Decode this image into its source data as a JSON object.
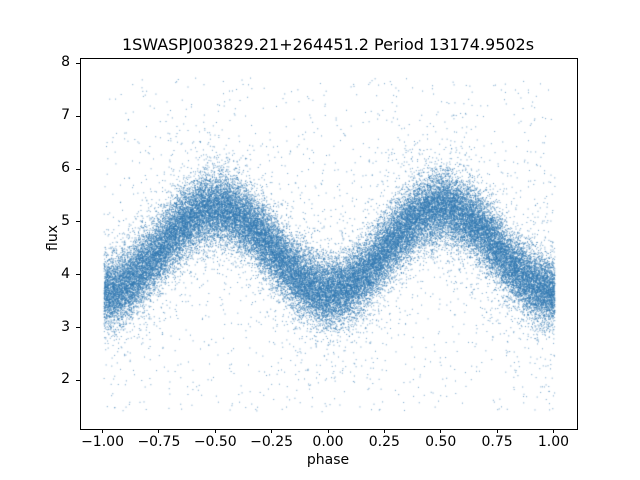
{
  "figure": {
    "background": "#ffffff",
    "spine_color": "#000000",
    "text_color": "#000000"
  },
  "chart_data": {
    "type": "scatter",
    "title": "1SWASPJ003829.21+264451.2 Period 13174.9502s",
    "xlabel": "phase",
    "ylabel": "flux",
    "xlim": [
      -1.1,
      1.1
    ],
    "ylim": [
      1.1,
      8.1
    ],
    "grid": false,
    "legend": "none",
    "x_ticks": [
      -1.0,
      -0.75,
      -0.5,
      -0.25,
      0.0,
      0.25,
      0.5,
      0.75,
      1.0
    ],
    "x_tick_labels": [
      "−1.00",
      "−0.75",
      "−0.50",
      "−0.25",
      "0.00",
      "0.25",
      "0.50",
      "0.75",
      "1.00"
    ],
    "y_ticks": [
      2,
      3,
      4,
      5,
      6,
      7,
      8
    ],
    "y_tick_labels": [
      "2",
      "3",
      "4",
      "5",
      "6",
      "7",
      "8"
    ],
    "marker_color": "#3177b1",
    "marker_rgba": "rgba(49,119,177,0.70)",
    "marker_size_px": 1,
    "curve_ridge": {
      "phases": [
        -1.0,
        -0.75,
        -0.5,
        -0.25,
        0.0,
        0.25,
        0.5,
        0.75,
        1.0
      ],
      "flux": [
        3.7,
        4.5,
        5.3,
        4.5,
        3.7,
        4.5,
        5.3,
        4.5,
        3.7
      ]
    },
    "model": {
      "kind": "folded_lightcurve_double_wave",
      "phase_range": [
        -1.0,
        1.0
      ],
      "mean_flux": 4.5,
      "amplitude": 0.8,
      "maxima_phases": [
        -0.5,
        0.5
      ],
      "minima_phases": [
        -1.0,
        0.0,
        1.0
      ],
      "noise_sigma": 0.33,
      "wide_noise_sigma": 0.9,
      "wide_noise_fraction": 0.06,
      "n_points": 46000,
      "outliers": {
        "n": 1150,
        "flux_min": 1.45,
        "flux_max": 7.75
      },
      "seed": 42
    }
  }
}
